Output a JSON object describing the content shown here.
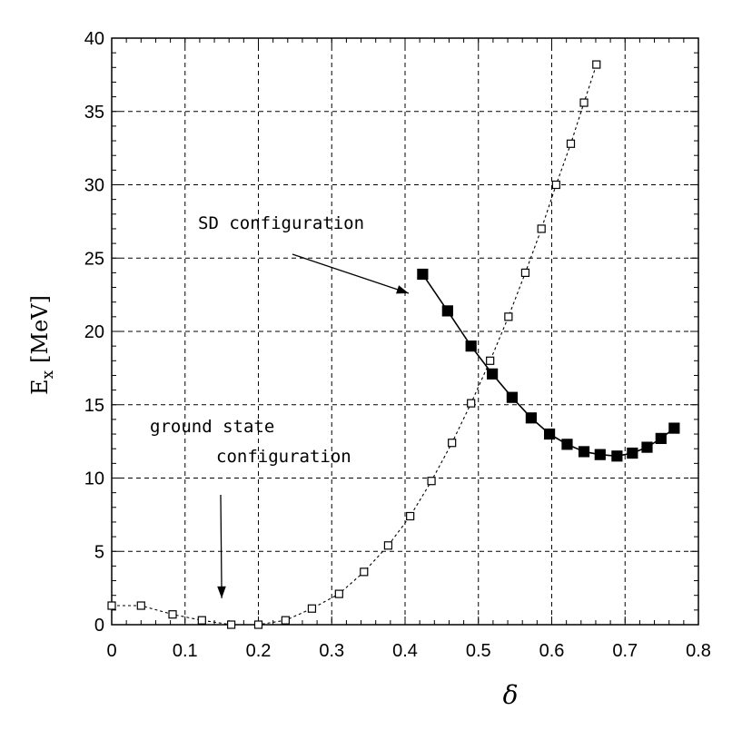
{
  "chart_data": {
    "type": "line",
    "title": "",
    "xlabel": "δ",
    "ylabel_main": "E",
    "ylabel_sub": "x",
    "ylabel_unit": "[MeV]",
    "xlim": [
      0,
      0.8
    ],
    "ylim": [
      0,
      40
    ],
    "x_ticks": [
      "0",
      "0.1",
      "0.2",
      "0.3",
      "0.4",
      "0.5",
      "0.6",
      "0.7",
      "0.8"
    ],
    "y_ticks": [
      "0",
      "5",
      "10",
      "15",
      "20",
      "25",
      "30",
      "35",
      "40"
    ],
    "grid": true,
    "series": [
      {
        "marker": "open-square",
        "line": "dotted",
        "x": [
          0.0,
          0.04,
          0.083,
          0.123,
          0.163,
          0.2,
          0.237,
          0.273,
          0.31,
          0.344,
          0.377,
          0.407,
          0.436,
          0.464,
          0.49,
          0.516,
          0.541,
          0.564,
          0.586,
          0.606,
          0.626,
          0.644,
          0.661
        ],
        "y": [
          1.3,
          1.3,
          0.7,
          0.3,
          0.0,
          0.0,
          0.3,
          1.1,
          2.1,
          3.6,
          5.4,
          7.4,
          9.8,
          12.4,
          15.1,
          18.0,
          21.0,
          24.0,
          27.0,
          30.0,
          32.8,
          35.6,
          38.2
        ]
      },
      {
        "marker": "filled-square",
        "line": "solid",
        "x": [
          0.424,
          0.458,
          0.49,
          0.519,
          0.546,
          0.572,
          0.597,
          0.621,
          0.644,
          0.666,
          0.689,
          0.71,
          0.73,
          0.749,
          0.767
        ],
        "y": [
          23.9,
          21.4,
          19.0,
          17.1,
          15.5,
          14.1,
          13.0,
          12.3,
          11.8,
          11.6,
          11.5,
          11.7,
          12.1,
          12.7,
          13.4
        ]
      }
    ],
    "annotations": [
      {
        "text": "SD configuration",
        "arrow_to": [
          0.405,
          22.6
        ]
      },
      {
        "text": "ground state",
        "text2": "configuration",
        "arrow_to": [
          0.15,
          1.8
        ]
      }
    ]
  }
}
